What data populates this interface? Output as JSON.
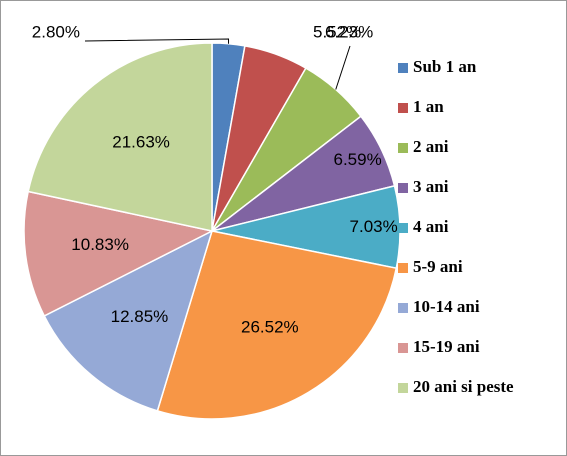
{
  "chart_data": {
    "type": "pie",
    "categories": [
      "Sub 1 an",
      "1 an",
      "2 ani",
      "3 ani",
      "4 ani",
      "5-9 ani",
      "10-14 ani",
      "15-19 ani",
      "20 ani si peste"
    ],
    "values": [
      2.8,
      5.52,
      6.23,
      6.59,
      7.03,
      26.52,
      12.85,
      10.83,
      21.63
    ],
    "value_labels": [
      "2.80%",
      "5.52%",
      "6.23%",
      "6.59%",
      "7.03%",
      "26.52%",
      "12.85%",
      "10.83%",
      "21.63%"
    ],
    "colors": [
      "#4f81bd",
      "#c0504d",
      "#9bbb59",
      "#8064a2",
      "#4bacc6",
      "#f79646",
      "#95a9d6",
      "#d99694",
      "#c3d69b"
    ],
    "legend": "right"
  }
}
